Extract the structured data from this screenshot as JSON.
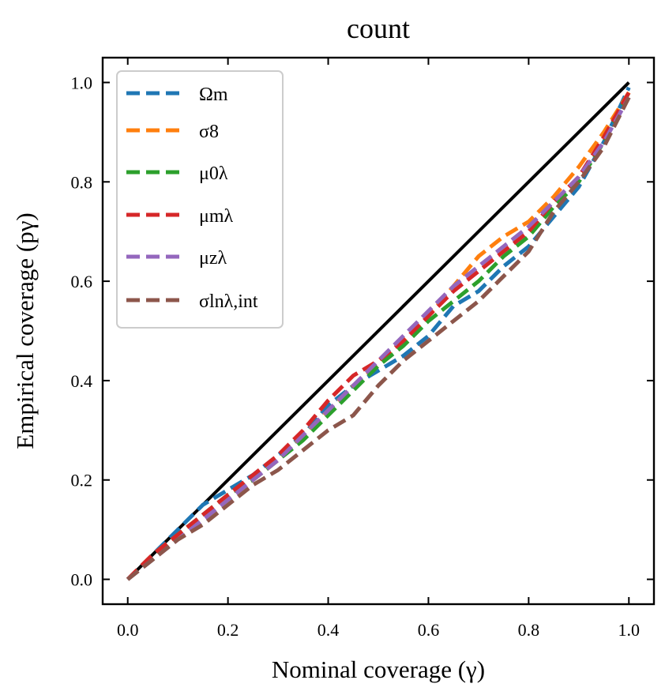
{
  "chart_data": {
    "type": "line",
    "title": "count",
    "xlabel": "Nominal coverage (γ)",
    "ylabel": "Empirical coverage (pγ)",
    "xlim": [
      -0.05,
      1.05
    ],
    "ylim": [
      -0.05,
      1.05
    ],
    "xticks": [
      "0.0",
      "0.2",
      "0.4",
      "0.6",
      "0.8",
      "1.0"
    ],
    "yticks": [
      "0.0",
      "0.2",
      "0.4",
      "0.6",
      "0.8",
      "1.0"
    ],
    "grid": false,
    "legend_position": "top-left",
    "reference_line": {
      "x": [
        0,
        1
      ],
      "y": [
        0,
        1
      ],
      "color": "#000000"
    },
    "series": [
      {
        "name": "Ωm",
        "color": "#1f77b4",
        "x": [
          0,
          0.05,
          0.1,
          0.15,
          0.2,
          0.25,
          0.3,
          0.35,
          0.4,
          0.45,
          0.5,
          0.55,
          0.6,
          0.65,
          0.7,
          0.75,
          0.8,
          0.85,
          0.9,
          0.95,
          1.0
        ],
        "y": [
          0,
          0.05,
          0.1,
          0.15,
          0.18,
          0.21,
          0.25,
          0.29,
          0.35,
          0.39,
          0.42,
          0.45,
          0.49,
          0.55,
          0.58,
          0.63,
          0.67,
          0.73,
          0.79,
          0.88,
          0.99
        ]
      },
      {
        "name": "σ8",
        "color": "#ff7f0e",
        "x": [
          0,
          0.05,
          0.1,
          0.15,
          0.2,
          0.25,
          0.3,
          0.35,
          0.4,
          0.45,
          0.5,
          0.55,
          0.6,
          0.65,
          0.7,
          0.75,
          0.8,
          0.85,
          0.9,
          0.95,
          1.0
        ],
        "y": [
          0,
          0.05,
          0.09,
          0.13,
          0.17,
          0.2,
          0.24,
          0.29,
          0.34,
          0.39,
          0.43,
          0.48,
          0.53,
          0.59,
          0.65,
          0.69,
          0.72,
          0.77,
          0.83,
          0.9,
          0.98
        ]
      },
      {
        "name": "μ0λ",
        "color": "#2ca02c",
        "x": [
          0,
          0.05,
          0.1,
          0.15,
          0.2,
          0.25,
          0.3,
          0.35,
          0.4,
          0.45,
          0.5,
          0.55,
          0.6,
          0.65,
          0.7,
          0.75,
          0.8,
          0.85,
          0.9,
          0.95,
          1.0
        ],
        "y": [
          0,
          0.04,
          0.09,
          0.13,
          0.17,
          0.2,
          0.24,
          0.28,
          0.33,
          0.38,
          0.43,
          0.47,
          0.52,
          0.56,
          0.6,
          0.65,
          0.69,
          0.75,
          0.8,
          0.88,
          0.98
        ]
      },
      {
        "name": "μmλ",
        "color": "#d62728",
        "x": [
          0,
          0.05,
          0.1,
          0.15,
          0.2,
          0.25,
          0.3,
          0.35,
          0.4,
          0.45,
          0.5,
          0.55,
          0.6,
          0.65,
          0.7,
          0.75,
          0.8,
          0.85,
          0.9,
          0.95,
          1.0
        ],
        "y": [
          0,
          0.05,
          0.09,
          0.13,
          0.17,
          0.21,
          0.25,
          0.3,
          0.36,
          0.41,
          0.44,
          0.48,
          0.53,
          0.58,
          0.62,
          0.66,
          0.7,
          0.76,
          0.81,
          0.89,
          0.98
        ]
      },
      {
        "name": "μzλ",
        "color": "#9467bd",
        "x": [
          0,
          0.05,
          0.1,
          0.15,
          0.2,
          0.25,
          0.3,
          0.35,
          0.4,
          0.45,
          0.5,
          0.55,
          0.6,
          0.65,
          0.7,
          0.75,
          0.8,
          0.85,
          0.9,
          0.95,
          1.0
        ],
        "y": [
          0,
          0.04,
          0.08,
          0.12,
          0.16,
          0.2,
          0.24,
          0.29,
          0.34,
          0.39,
          0.44,
          0.49,
          0.54,
          0.59,
          0.63,
          0.67,
          0.71,
          0.76,
          0.81,
          0.88,
          0.97
        ]
      },
      {
        "name": "σlnλ,int",
        "color": "#8c564b",
        "x": [
          0,
          0.05,
          0.1,
          0.15,
          0.2,
          0.25,
          0.3,
          0.35,
          0.4,
          0.45,
          0.5,
          0.55,
          0.6,
          0.65,
          0.7,
          0.75,
          0.8,
          0.85,
          0.9,
          0.95,
          1.0
        ],
        "y": [
          0,
          0.04,
          0.08,
          0.11,
          0.15,
          0.19,
          0.22,
          0.26,
          0.3,
          0.33,
          0.39,
          0.44,
          0.48,
          0.52,
          0.56,
          0.61,
          0.66,
          0.74,
          0.8,
          0.87,
          0.97
        ]
      }
    ]
  }
}
